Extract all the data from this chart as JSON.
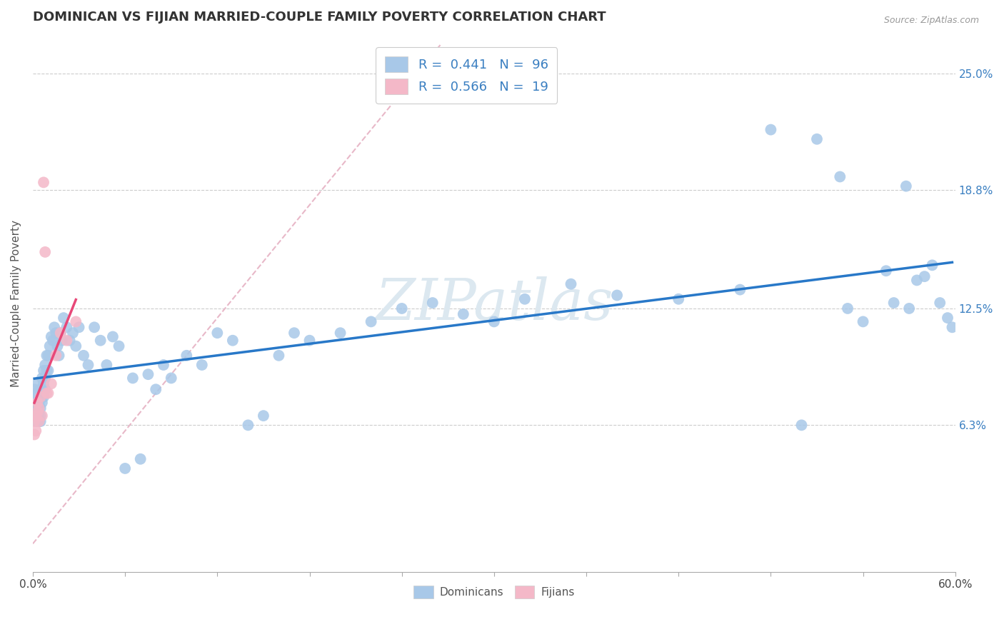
{
  "title": "DOMINICAN VS FIJIAN MARRIED-COUPLE FAMILY POVERTY CORRELATION CHART",
  "source": "Source: ZipAtlas.com",
  "ylabel": "Married-Couple Family Poverty",
  "ytick_labels": [
    "6.3%",
    "12.5%",
    "18.8%",
    "25.0%"
  ],
  "ytick_values": [
    0.063,
    0.125,
    0.188,
    0.25
  ],
  "xlim": [
    0.0,
    0.6
  ],
  "ylim": [
    -0.015,
    0.27
  ],
  "legend_r1": "0.441",
  "legend_n1": "96",
  "legend_r2": "0.566",
  "legend_n2": "19",
  "dominican_color": "#a8c8e8",
  "fijian_color": "#f4b8c8",
  "dominican_line_color": "#2878c8",
  "fijian_line_color": "#e84878",
  "diagonal_line_color": "#e8b8c8",
  "watermark_text": "ZIPatlas",
  "watermark_color": "#dce8f0",
  "dom_x": [
    0.001,
    0.001,
    0.002,
    0.002,
    0.002,
    0.002,
    0.003,
    0.003,
    0.003,
    0.003,
    0.004,
    0.004,
    0.004,
    0.004,
    0.005,
    0.005,
    0.005,
    0.005,
    0.006,
    0.006,
    0.006,
    0.007,
    0.007,
    0.007,
    0.008,
    0.008,
    0.008,
    0.009,
    0.009,
    0.01,
    0.01,
    0.011,
    0.012,
    0.013,
    0.014,
    0.015,
    0.016,
    0.017,
    0.018,
    0.019,
    0.02,
    0.022,
    0.024,
    0.026,
    0.028,
    0.03,
    0.033,
    0.036,
    0.04,
    0.044,
    0.048,
    0.052,
    0.056,
    0.06,
    0.065,
    0.07,
    0.075,
    0.08,
    0.085,
    0.09,
    0.1,
    0.11,
    0.12,
    0.13,
    0.14,
    0.15,
    0.16,
    0.17,
    0.18,
    0.2,
    0.22,
    0.24,
    0.26,
    0.28,
    0.3,
    0.32,
    0.35,
    0.38,
    0.42,
    0.46,
    0.5,
    0.53,
    0.555,
    0.568,
    0.575,
    0.58,
    0.585,
    0.59,
    0.595,
    0.598,
    0.48,
    0.51,
    0.525,
    0.54,
    0.56,
    0.57
  ],
  "dom_y": [
    0.082,
    0.075,
    0.08,
    0.073,
    0.068,
    0.065,
    0.078,
    0.085,
    0.072,
    0.07,
    0.08,
    0.075,
    0.068,
    0.065,
    0.082,
    0.072,
    0.068,
    0.065,
    0.088,
    0.08,
    0.075,
    0.092,
    0.085,
    0.078,
    0.095,
    0.088,
    0.082,
    0.1,
    0.092,
    0.1,
    0.092,
    0.105,
    0.11,
    0.108,
    0.115,
    0.112,
    0.105,
    0.1,
    0.112,
    0.108,
    0.12,
    0.115,
    0.108,
    0.112,
    0.105,
    0.115,
    0.1,
    0.095,
    0.115,
    0.108,
    0.095,
    0.11,
    0.105,
    0.04,
    0.088,
    0.045,
    0.09,
    0.082,
    0.095,
    0.088,
    0.1,
    0.095,
    0.112,
    0.108,
    0.063,
    0.068,
    0.1,
    0.112,
    0.108,
    0.112,
    0.118,
    0.125,
    0.128,
    0.122,
    0.118,
    0.13,
    0.138,
    0.132,
    0.13,
    0.135,
    0.063,
    0.125,
    0.145,
    0.19,
    0.14,
    0.142,
    0.148,
    0.128,
    0.12,
    0.115,
    0.22,
    0.215,
    0.195,
    0.118,
    0.128,
    0.125
  ],
  "fij_x": [
    0.001,
    0.001,
    0.002,
    0.002,
    0.003,
    0.003,
    0.004,
    0.004,
    0.005,
    0.006,
    0.007,
    0.008,
    0.009,
    0.01,
    0.012,
    0.015,
    0.018,
    0.022,
    0.028
  ],
  "fij_y": [
    0.065,
    0.058,
    0.068,
    0.06,
    0.075,
    0.07,
    0.072,
    0.065,
    0.078,
    0.068,
    0.192,
    0.155,
    0.08,
    0.08,
    0.085,
    0.1,
    0.112,
    0.108,
    0.118
  ]
}
